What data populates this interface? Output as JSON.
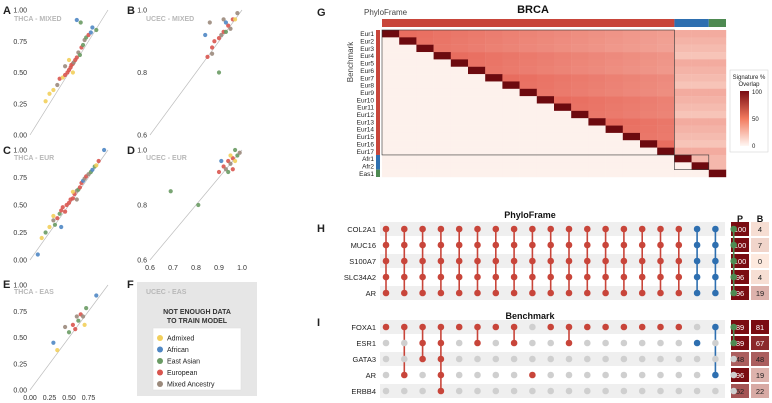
{
  "colors": {
    "admixed": "#f2cf5b",
    "african": "#4f87c4",
    "east_asian": "#6a9b64",
    "european": "#d9554f",
    "mixed_ancestry": "#9b8a7c",
    "pf_red": "#c8453a",
    "bench_blue": "#2e6fb0",
    "bench_green": "#4e8a52"
  },
  "panels": {
    "A": {
      "letter": "A",
      "tag": "THCA - MIXED"
    },
    "B": {
      "letter": "B",
      "tag": "UCEC - MIXED"
    },
    "C": {
      "letter": "C",
      "tag": "THCA - EUR"
    },
    "D": {
      "letter": "D",
      "tag": "UCEC - EUR"
    },
    "E": {
      "letter": "E",
      "tag": "THCA - EAS"
    },
    "F": {
      "letter": "F",
      "tag": "UCEC - EAS",
      "message": "NOT ENOUGH DATA TO TRAIN MODEL"
    },
    "G": {
      "letter": "G",
      "title": "BRCA",
      "top_label": "PhyloFrame",
      "side_label": "Benchmark"
    },
    "H": {
      "letter": "H",
      "title": "PhyloFrame"
    },
    "I": {
      "letter": "I",
      "title": "Benchmark"
    }
  },
  "axis_ticks": {
    "thca_y": [
      "0.00",
      "0.25",
      "0.50",
      "0.75",
      "1.00"
    ],
    "thca_x": [
      "0.00",
      "0.25",
      "0.50",
      "0.75"
    ],
    "ucec_y": [
      "0.6",
      "0.8",
      "1.0"
    ],
    "ucec_x": [
      "0.6",
      "0.7",
      "0.8",
      "0.9",
      "1.0"
    ]
  },
  "legend": [
    {
      "label": "Admixed",
      "color": "#f2cf5b"
    },
    {
      "label": "African",
      "color": "#4f87c4"
    },
    {
      "label": "East Asian",
      "color": "#6a9b64"
    },
    {
      "label": "European",
      "color": "#d9554f"
    },
    {
      "label": "Mixed Ancestry",
      "color": "#9b8a7c"
    }
  ],
  "heatmap": {
    "rows": [
      "Eur1",
      "Eur2",
      "Eur3",
      "Eur4",
      "Eur5",
      "Eur6",
      "Eur7",
      "Eur8",
      "Eur9",
      "Eur10",
      "Eur11",
      "Eur12",
      "Eur13",
      "Eur14",
      "Eur15",
      "Eur16",
      "Eur17",
      "Afr1",
      "Afr2",
      "Eas1"
    ],
    "colorbar": {
      "title_line1": "Signature %",
      "title_line2": "Overlap",
      "ticks": [
        "100",
        "50",
        "0"
      ],
      "range": [
        0,
        100
      ]
    }
  },
  "upset_H": {
    "genes": [
      "COL2A1",
      "MUC16",
      "S100A7",
      "SLC34A2",
      "AR"
    ],
    "col_headers": [
      "P",
      "B"
    ],
    "P": [
      "100",
      "100",
      "100",
      "96",
      "96"
    ],
    "B": [
      "4",
      "7",
      "0",
      "4",
      "19"
    ]
  },
  "upset_I": {
    "genes": [
      "FOXA1",
      "ESR1",
      "GATA3",
      "AR",
      "ERBB4"
    ],
    "P": [
      "89",
      "89",
      "48",
      "96",
      "52"
    ],
    "B": [
      "81",
      "67",
      "48",
      "19",
      "22"
    ]
  },
  "chart_data": [
    {
      "type": "scatter",
      "title": "THCA - MIXED",
      "xlabel": "",
      "ylabel": "",
      "xlim": [
        0,
        1
      ],
      "ylim": [
        0,
        1
      ],
      "diagonal": true,
      "points": [
        [
          0.2,
          0.27,
          0
        ],
        [
          0.25,
          0.33,
          0
        ],
        [
          0.3,
          0.36,
          0
        ],
        [
          0.35,
          0.4,
          4
        ],
        [
          0.38,
          0.45,
          3
        ],
        [
          0.42,
          0.46,
          0
        ],
        [
          0.45,
          0.48,
          3
        ],
        [
          0.48,
          0.5,
          3
        ],
        [
          0.5,
          0.52,
          3
        ],
        [
          0.52,
          0.54,
          3
        ],
        [
          0.53,
          0.56,
          3
        ],
        [
          0.55,
          0.57,
          3
        ],
        [
          0.56,
          0.58,
          4
        ],
        [
          0.58,
          0.6,
          3
        ],
        [
          0.6,
          0.62,
          3
        ],
        [
          0.62,
          0.66,
          4
        ],
        [
          0.64,
          0.64,
          2
        ],
        [
          0.66,
          0.7,
          3
        ],
        [
          0.68,
          0.72,
          2
        ],
        [
          0.7,
          0.76,
          4
        ],
        [
          0.72,
          0.78,
          2
        ],
        [
          0.75,
          0.8,
          3
        ],
        [
          0.78,
          0.82,
          1
        ],
        [
          0.8,
          0.86,
          1
        ],
        [
          0.85,
          0.84,
          2
        ],
        [
          0.6,
          0.92,
          1
        ],
        [
          0.65,
          0.9,
          2
        ],
        [
          0.5,
          0.6,
          0
        ],
        [
          0.45,
          0.55,
          4
        ],
        [
          0.55,
          0.5,
          0
        ]
      ]
    },
    {
      "type": "scatter",
      "title": "UCEC - MIXED",
      "xlim": [
        0.6,
        1.0
      ],
      "ylim": [
        0.6,
        1.0
      ],
      "diagonal": true,
      "points": [
        [
          0.85,
          0.85,
          3
        ],
        [
          0.87,
          0.86,
          4
        ],
        [
          0.88,
          0.9,
          3
        ],
        [
          0.9,
          0.91,
          3
        ],
        [
          0.91,
          0.92,
          4
        ],
        [
          0.92,
          0.93,
          3
        ],
        [
          0.93,
          0.93,
          2
        ],
        [
          0.94,
          0.95,
          3
        ],
        [
          0.95,
          0.94,
          4
        ],
        [
          0.96,
          0.97,
          3
        ],
        [
          0.97,
          0.97,
          0
        ],
        [
          0.98,
          0.99,
          4
        ],
        [
          0.86,
          0.96,
          4
        ],
        [
          0.87,
          0.88,
          3
        ],
        [
          0.84,
          0.92,
          1
        ],
        [
          0.92,
          0.97,
          4
        ],
        [
          0.9,
          0.8,
          2
        ],
        [
          0.93,
          0.96,
          1
        ]
      ]
    },
    {
      "type": "scatter",
      "title": "THCA - EUR",
      "xlim": [
        0,
        1
      ],
      "ylim": [
        0,
        1
      ],
      "diagonal": true,
      "points": [
        [
          0.1,
          0.05,
          1
        ],
        [
          0.15,
          0.2,
          0
        ],
        [
          0.2,
          0.25,
          2
        ],
        [
          0.25,
          0.3,
          0
        ],
        [
          0.3,
          0.36,
          4
        ],
        [
          0.32,
          0.32,
          2
        ],
        [
          0.35,
          0.38,
          3
        ],
        [
          0.38,
          0.42,
          2
        ],
        [
          0.4,
          0.45,
          3
        ],
        [
          0.42,
          0.48,
          3
        ],
        [
          0.45,
          0.44,
          3
        ],
        [
          0.47,
          0.5,
          3
        ],
        [
          0.5,
          0.52,
          3
        ],
        [
          0.52,
          0.55,
          3
        ],
        [
          0.55,
          0.56,
          3
        ],
        [
          0.57,
          0.6,
          3
        ],
        [
          0.6,
          0.63,
          4
        ],
        [
          0.62,
          0.64,
          2
        ],
        [
          0.64,
          0.66,
          3
        ],
        [
          0.66,
          0.7,
          3
        ],
        [
          0.68,
          0.72,
          1
        ],
        [
          0.7,
          0.74,
          4
        ],
        [
          0.72,
          0.76,
          3
        ],
        [
          0.75,
          0.78,
          4
        ],
        [
          0.78,
          0.8,
          2
        ],
        [
          0.8,
          0.82,
          1
        ],
        [
          0.83,
          0.85,
          2
        ],
        [
          0.85,
          0.86,
          0
        ],
        [
          0.88,
          0.9,
          3
        ],
        [
          0.55,
          0.62,
          0
        ],
        [
          0.6,
          0.55,
          4
        ],
        [
          0.4,
          0.3,
          1
        ],
        [
          0.3,
          0.4,
          0
        ],
        [
          0.95,
          1.0,
          1
        ]
      ]
    },
    {
      "type": "scatter",
      "title": "UCEC - EUR",
      "xlabel": "",
      "xlim": [
        0.6,
        1.0
      ],
      "ylim": [
        0.6,
        1.0
      ],
      "diagonal": true,
      "points": [
        [
          0.69,
          0.85,
          2
        ],
        [
          0.81,
          0.8,
          2
        ],
        [
          0.9,
          0.92,
          3
        ],
        [
          0.92,
          0.94,
          3
        ],
        [
          0.93,
          0.93,
          4
        ],
        [
          0.94,
          0.96,
          3
        ],
        [
          0.95,
          0.95,
          4
        ],
        [
          0.96,
          0.97,
          3
        ],
        [
          0.97,
          0.96,
          0
        ],
        [
          0.98,
          0.98,
          2
        ],
        [
          0.99,
          0.99,
          4
        ],
        [
          0.94,
          0.92,
          2
        ],
        [
          0.96,
          0.93,
          3
        ],
        [
          0.91,
          0.96,
          1
        ],
        [
          0.95,
          0.98,
          0
        ],
        [
          0.97,
          1.0,
          2
        ]
      ]
    },
    {
      "type": "scatter",
      "title": "THCA - EAS",
      "xlim": [
        0,
        1
      ],
      "ylim": [
        0,
        1
      ],
      "diagonal": true,
      "points": [
        [
          0.3,
          0.45,
          1
        ],
        [
          0.35,
          0.38,
          0
        ],
        [
          0.45,
          0.6,
          4
        ],
        [
          0.5,
          0.55,
          2
        ],
        [
          0.55,
          0.62,
          3
        ],
        [
          0.58,
          0.58,
          3
        ],
        [
          0.6,
          0.7,
          4
        ],
        [
          0.62,
          0.66,
          2
        ],
        [
          0.65,
          0.72,
          3
        ],
        [
          0.68,
          0.7,
          4
        ],
        [
          0.72,
          0.78,
          2
        ],
        [
          0.85,
          0.9,
          1
        ],
        [
          0.7,
          0.62,
          0
        ]
      ]
    }
  ]
}
